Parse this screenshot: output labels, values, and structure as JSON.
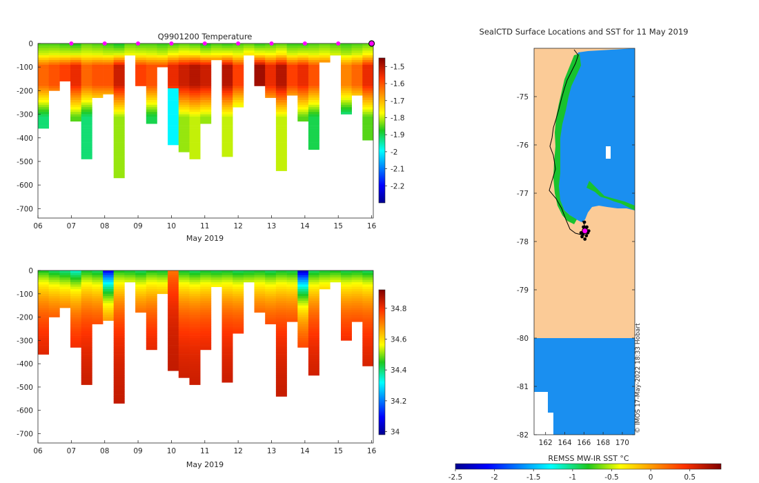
{
  "chart_data": [
    {
      "type": "heatmap",
      "title": "Q9901200  Temperature",
      "xlabel": "May 2019",
      "ylabel": "",
      "x_ticks": [
        "06",
        "07",
        "08",
        "09",
        "10",
        "11",
        "12",
        "13",
        "14",
        "15",
        "16"
      ],
      "xlim": [
        6,
        16.05
      ],
      "y_ticks": [
        0,
        -100,
        -200,
        -300,
        -400,
        -500,
        -600,
        -700
      ],
      "ylim": [
        -740,
        0
      ],
      "colorbar": {
        "ticks": [
          -1.5,
          -1.6,
          -1.7,
          -1.8,
          -1.9,
          -2,
          -2.1,
          -2.2
        ],
        "range": [
          -2.3,
          -1.45
        ]
      },
      "marker_days": [
        7,
        8,
        9,
        10,
        11,
        12,
        13,
        14,
        15
      ],
      "last_marker_day": 16,
      "series": [
        {
          "name": "profiles_max_depth_m",
          "values": [
            360,
            200,
            160,
            330,
            490,
            230,
            215,
            570,
            50,
            180,
            340,
            100,
            430,
            460,
            490,
            340,
            70,
            480,
            270,
            50,
            180,
            230,
            540,
            220,
            330,
            450,
            80,
            50,
            300,
            220,
            410
          ]
        },
        {
          "name": "profiles_surface_temperature",
          "values": [
            -1.85,
            -1.85,
            -1.86,
            -1.87,
            -1.84,
            -1.85,
            -1.86,
            -1.88,
            -1.84,
            -1.85,
            -1.85,
            -1.86,
            -1.85,
            -1.84,
            -1.85,
            -1.87,
            -1.85,
            -1.86,
            -1.85,
            -1.84,
            -1.86,
            -1.85,
            -1.84,
            -1.86,
            -1.86,
            -1.85,
            -1.84,
            -1.85,
            -1.86,
            -1.85,
            -1.84
          ]
        },
        {
          "name": "profiles_peak_temperature",
          "values": [
            -1.62,
            -1.6,
            -1.58,
            -1.55,
            -1.62,
            -1.6,
            -1.6,
            -1.52,
            -1.6,
            -1.58,
            -1.6,
            -1.6,
            -1.55,
            -1.52,
            -1.5,
            -1.52,
            -1.55,
            -1.5,
            -1.58,
            -1.5,
            -1.48,
            -1.55,
            -1.5,
            -1.58,
            -1.55,
            -1.6,
            -1.6,
            -1.62,
            -1.65,
            -1.62,
            -1.55
          ]
        }
      ]
    },
    {
      "type": "heatmap",
      "title": "",
      "xlabel": "May 2019",
      "ylabel": "",
      "x_ticks": [
        "06",
        "07",
        "08",
        "09",
        "10",
        "11",
        "12",
        "13",
        "14",
        "15",
        "16"
      ],
      "xlim": [
        6,
        16.05
      ],
      "y_ticks": [
        0,
        -100,
        -200,
        -300,
        -400,
        -500,
        -600,
        -700
      ],
      "ylim": [
        -740,
        0
      ],
      "colorbar": {
        "ticks": [
          34.8,
          34.6,
          34.4,
          34.2,
          34
        ],
        "range": [
          33.98,
          34.92
        ]
      },
      "series": [
        {
          "name": "profiles_max_depth_m",
          "values": [
            360,
            200,
            160,
            330,
            490,
            230,
            215,
            570,
            50,
            180,
            340,
            100,
            430,
            460,
            490,
            340,
            70,
            480,
            270,
            50,
            180,
            230,
            540,
            220,
            330,
            450,
            80,
            50,
            300,
            220,
            410
          ]
        },
        {
          "name": "profiles_surface_salinity",
          "values": [
            34.45,
            34.42,
            34.4,
            34.36,
            34.44,
            34.42,
            34.1,
            34.45,
            34.44,
            34.42,
            34.45,
            34.44,
            34.72,
            34.44,
            34.42,
            34.44,
            34.43,
            34.44,
            34.42,
            34.43,
            34.44,
            34.42,
            34.44,
            34.43,
            34.05,
            34.42,
            34.44,
            34.45,
            34.43,
            34.44,
            34.42
          ]
        }
      ]
    },
    {
      "type": "heatmap",
      "title": "SealCTD Surface Locations and SST for 11 May 2019",
      "xlabel": "",
      "ylabel": "",
      "x_ticks": [
        162,
        164,
        166,
        168,
        170
      ],
      "xlim": [
        160.8,
        171.3
      ],
      "y_ticks": [
        -75,
        -76,
        -77,
        -78,
        -79,
        -80,
        -81,
        -82
      ],
      "ylim": [
        -82,
        -74
      ],
      "colorbar": {
        "label": "REMSS MW-IR SST °C",
        "ticks": [
          -2.5,
          -2,
          -1.5,
          -1,
          -0.5,
          0,
          0.5
        ],
        "range": [
          -2.5,
          0.9
        ]
      },
      "credit": "© IMOS 17-May-2022 18:33 Hobart",
      "sst_ocean_value": -1.6,
      "sst_coast_value": -1.05,
      "stations": [
        [
          166.2,
          -77.75
        ],
        [
          166.1,
          -77.8
        ],
        [
          165.9,
          -77.85
        ],
        [
          166.3,
          -77.7
        ],
        [
          166.0,
          -77.78
        ],
        [
          165.8,
          -77.9
        ],
        [
          166.4,
          -77.82
        ],
        [
          166.1,
          -77.95
        ],
        [
          165.95,
          -77.7
        ],
        [
          166.25,
          -77.88
        ],
        [
          166.5,
          -77.78
        ],
        [
          165.7,
          -77.82
        ],
        [
          166.05,
          -77.6
        ]
      ],
      "current_station": [
        166.1,
        -77.78
      ]
    }
  ]
}
